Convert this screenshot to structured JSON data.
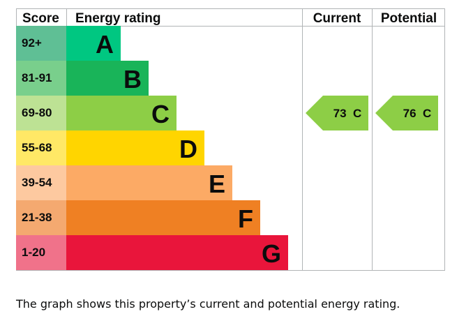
{
  "chart_data": {
    "type": "bar",
    "headers": {
      "score": "Score",
      "rating": "Energy rating",
      "current": "Current",
      "potential": "Potential"
    },
    "bands": [
      {
        "letter": "A",
        "score": "92+",
        "color": "#008054",
        "score_bg": "#5fbf95",
        "bar": "#00c781"
      },
      {
        "letter": "B",
        "score": "81-91",
        "color": "#19b459",
        "score_bg": "#79cf8c",
        "bar": "#19b459"
      },
      {
        "letter": "C",
        "score": "69-80",
        "color": "#8dce46",
        "score_bg": "#bde294",
        "bar": "#8dce46"
      },
      {
        "letter": "D",
        "score": "55-68",
        "color": "#ffd500",
        "score_bg": "#ffe866",
        "bar": "#ffd500"
      },
      {
        "letter": "E",
        "score": "39-54",
        "color": "#fcaa65",
        "score_bg": "#fdc9a0",
        "bar": "#fcaa65"
      },
      {
        "letter": "F",
        "score": "21-38",
        "color": "#ef8023",
        "score_bg": "#f4a970",
        "bar": "#ef8023"
      },
      {
        "letter": "G",
        "score": "1-20",
        "color": "#e9153b",
        "score_bg": "#f0728a",
        "bar": "#e9153b"
      }
    ],
    "current": {
      "value": 73,
      "letter": "C",
      "label": "73  C",
      "color": "#8dce46"
    },
    "potential": {
      "value": 76,
      "letter": "C",
      "label": "76  C",
      "color": "#8dce46"
    }
  },
  "caption": "The graph shows this property’s current and potential energy rating."
}
